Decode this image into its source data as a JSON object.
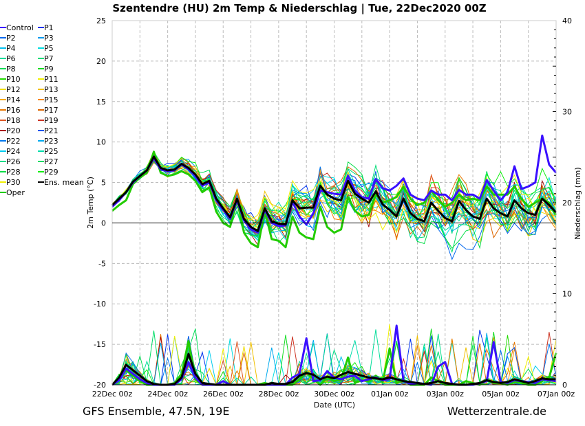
{
  "chart_data": {
    "type": "line",
    "title": "Szentendre  (HU)  2m Temp & Niederschlag | Tue, 22Dec2020 00Z",
    "xlabel": "Date (UTC)",
    "ylabel": "2m Temp (°C)",
    "y2label": "Niederschlag (mm)",
    "ylim": [
      -20,
      25
    ],
    "y2lim": [
      0,
      40
    ],
    "yticks": [
      "25",
      "20",
      "15",
      "10",
      "5",
      "0",
      "-5",
      "-10",
      "-15",
      "-20"
    ],
    "y2ticks": [
      "40",
      "30",
      "20",
      "10",
      "0"
    ],
    "xticks": [
      "22Dec 00z",
      "24Dec 00z",
      "26Dec 00z",
      "28Dec 00z",
      "30Dec 00z",
      "01Jan 00z",
      "03Jan 00z",
      "05Jan 00z",
      "07Jan 00z"
    ],
    "x_step_hours": 6,
    "grid": true,
    "legend_position": "left",
    "ens_mean_temp": [
      2.2,
      3.0,
      3.8,
      5.1,
      5.8,
      6.5,
      8.2,
      6.8,
      6.5,
      6.6,
      7.3,
      6.8,
      6.0,
      4.8,
      5.2,
      3.0,
      1.8,
      0.7,
      3.0,
      0.5,
      -0.5,
      -1.0,
      1.8,
      0.2,
      -0.1,
      -0.2,
      2.8,
      1.8,
      1.9,
      1.9,
      4.6,
      3.5,
      3.0,
      2.8,
      5.2,
      3.6,
      3.0,
      2.5,
      3.9,
      2.3,
      1.6,
      0.8,
      3.0,
      1.2,
      0.5,
      0.2,
      2.5,
      1.5,
      0.6,
      0.2,
      2.7,
      1.6,
      0.8,
      0.5,
      3.0,
      1.8,
      1.2,
      0.8,
      2.8,
      1.8,
      1.2,
      1.0,
      3.0,
      2.2,
      1.3
    ],
    "ens_mean_precip": [
      0,
      0.8,
      2.2,
      1.6,
      1.0,
      0.4,
      0.1,
      0,
      0,
      0.1,
      0.8,
      3.4,
      1.2,
      0.2,
      0.1,
      0,
      0,
      0,
      0,
      0,
      0,
      0,
      0,
      0.2,
      0.1,
      0.1,
      0.3,
      1.0,
      1.3,
      1.1,
      0.6,
      0.9,
      0.7,
      1.1,
      1.4,
      1.2,
      1.0,
      0.8,
      0.7,
      0.6,
      0.8,
      0.6,
      0.4,
      0.3,
      0.2,
      0.1,
      0.2,
      0.4,
      0.2,
      0.1,
      0,
      0,
      0.1,
      0.2,
      0.5,
      0.3,
      0.2,
      0.3,
      0.6,
      0.4,
      0.2,
      0.4,
      0.7,
      0.6,
      0.6
    ],
    "control_temp": [
      2.0,
      2.8,
      3.8,
      5.0,
      5.8,
      6.5,
      8.0,
      6.6,
      6.4,
      6.5,
      7.2,
      6.6,
      5.8,
      4.6,
      5.0,
      2.8,
      1.6,
      0.5,
      2.8,
      0.3,
      -0.8,
      -1.2,
      1.6,
      0.0,
      -0.4,
      -0.3,
      2.6,
      0.8,
      -0.2,
      1.2,
      4.0,
      3.8,
      3.6,
      3.5,
      5.8,
      4.0,
      3.2,
      3.0,
      5.4,
      4.3,
      4.0,
      4.6,
      5.5,
      3.5,
      3.0,
      2.8,
      4.0,
      3.5,
      3.5,
      2.8,
      4.1,
      3.5,
      3.5,
      3.0,
      5.3,
      4.0,
      2.8,
      3.8,
      7.0,
      4.2,
      4.5,
      5.0,
      10.8,
      7.2,
      6.2
    ],
    "control_precip": [
      0,
      0.5,
      1.8,
      1.2,
      0.6,
      0.2,
      0,
      0,
      0,
      0,
      0.6,
      2.5,
      0.8,
      0,
      0,
      0,
      0.4,
      0,
      0,
      0,
      0,
      0,
      0,
      0,
      0,
      0,
      0.8,
      1.2,
      5.1,
      0.4,
      0.5,
      1.5,
      0.8,
      0.6,
      0.9,
      1.0,
      0.4,
      0.6,
      0.8,
      0.5,
      0.6,
      6.5,
      0.4,
      0.1,
      0.2,
      0.1,
      0,
      2.0,
      2.5,
      0.1,
      0,
      0,
      0,
      0.2,
      0.4,
      4.7,
      0.3,
      0.2,
      0.5,
      0.4,
      0.3,
      0.2,
      0.6,
      0.5,
      0.4
    ],
    "oper_temp": [
      1.5,
      2.2,
      2.8,
      4.8,
      5.6,
      6.2,
      8.8,
      6.2,
      5.8,
      6.0,
      6.4,
      6.0,
      5.2,
      3.8,
      4.4,
      1.4,
      0.0,
      -0.5,
      2.8,
      -1.2,
      -2.5,
      -3.0,
      1.5,
      -2.0,
      -2.2,
      -3.0,
      0.8,
      -1.2,
      -1.8,
      -2.0,
      2.0,
      -0.5,
      -1.2,
      -0.8,
      3.2,
      1.5,
      0.8,
      1.0,
      3.5,
      2.5,
      2.8,
      3.2,
      4.5,
      3.0,
      2.2,
      2.5,
      4.0,
      2.8,
      2.0,
      2.5,
      3.5,
      2.8,
      3.0,
      2.8,
      4.5,
      3.5,
      3.5,
      3.5,
      4.5,
      3.0,
      2.0,
      2.5,
      3.0,
      2.5,
      1.0
    ],
    "oper_precip": [
      0,
      0.6,
      1.6,
      1.0,
      0.4,
      0,
      0,
      0,
      0,
      0.2,
      1.2,
      4.8,
      0.6,
      0,
      0,
      0,
      0,
      0,
      0,
      0,
      0,
      0,
      0.2,
      0,
      0,
      0,
      0,
      0.6,
      1.4,
      0.6,
      0,
      0.8,
      0.4,
      0.6,
      3.0,
      0.2,
      0.5,
      0.4,
      1.0,
      0.3,
      4.0,
      0.2,
      0.5,
      0,
      0,
      0,
      0.8,
      0.4,
      0,
      0,
      0,
      0.4,
      0.2,
      0,
      0.5,
      0.2,
      0.2,
      0,
      0.3,
      0.2,
      0,
      0,
      0.4,
      0.8,
      3.5
    ],
    "legend": [
      {
        "label": "Control",
        "color": "#3a10ff"
      },
      {
        "label": "P1",
        "color": "#0033ee"
      },
      {
        "label": "P2",
        "color": "#0066ee"
      },
      {
        "label": "P3",
        "color": "#0099ee"
      },
      {
        "label": "P4",
        "color": "#00c0ee"
      },
      {
        "label": "P5",
        "color": "#00dde0"
      },
      {
        "label": "P6",
        "color": "#00dd99"
      },
      {
        "label": "P7",
        "color": "#00dd77"
      },
      {
        "label": "P8",
        "color": "#00dd55"
      },
      {
        "label": "P9",
        "color": "#11dd22"
      },
      {
        "label": "P10",
        "color": "#22dd00"
      },
      {
        "label": "P11",
        "color": "#f0f000"
      },
      {
        "label": "P12",
        "color": "#f0dd00"
      },
      {
        "label": "P13",
        "color": "#f0c000"
      },
      {
        "label": "P14",
        "color": "#f8aa00"
      },
      {
        "label": "P15",
        "color": "#f88800"
      },
      {
        "label": "P16",
        "color": "#e87700"
      },
      {
        "label": "P17",
        "color": "#dd6600"
      },
      {
        "label": "P18",
        "color": "#dd5522"
      },
      {
        "label": "P19",
        "color": "#cc3322"
      },
      {
        "label": "P20",
        "color": "#aa1111"
      },
      {
        "label": "P21",
        "color": "#0055ee"
      },
      {
        "label": "P22",
        "color": "#0077ee"
      },
      {
        "label": "P23",
        "color": "#00aaee"
      },
      {
        "label": "P24",
        "color": "#00ccee"
      },
      {
        "label": "P25",
        "color": "#00ddaa"
      },
      {
        "label": "P26",
        "color": "#00dd88"
      },
      {
        "label": "P27",
        "color": "#00dd66"
      },
      {
        "label": "P28",
        "color": "#00dd44"
      },
      {
        "label": "P29",
        "color": "#11ee11"
      },
      {
        "label": "P30",
        "color": "#f0f000"
      },
      {
        "label": "Ens. mean",
        "color": "#000000"
      },
      {
        "label": "Oper",
        "color": "#22cc00"
      }
    ]
  },
  "footer": {
    "left": "GFS Ensemble, 47.5N, 19E",
    "right": "Wetterzentrale.de"
  }
}
